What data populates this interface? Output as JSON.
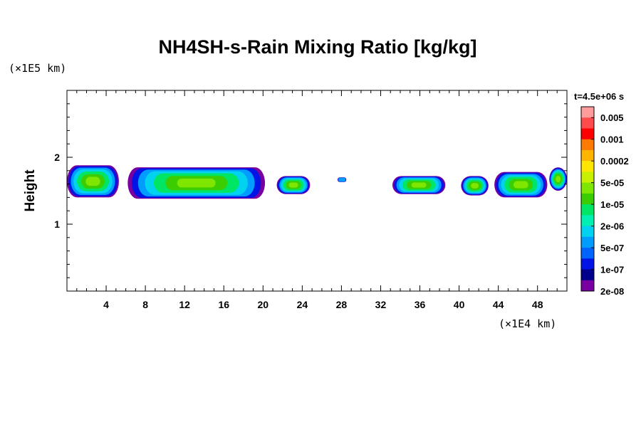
{
  "chart_data": {
    "type": "contour",
    "title": "NH4SH-s-Rain Mixing Ratio [kg/kg]",
    "ylabel": "Height",
    "y_unit": "(×1E5 km)",
    "x_unit": "(×1E4 km)",
    "time_label": "t=4.5e+06 s",
    "xlim": [
      0,
      51
    ],
    "ylim": [
      0,
      3
    ],
    "x_ticks": [
      4,
      8,
      12,
      16,
      20,
      24,
      28,
      32,
      36,
      40,
      44,
      48
    ],
    "y_ticks": [
      1,
      2
    ],
    "colorbar": {
      "labels": [
        "0.005",
        "0.001",
        "0.0002",
        "5e-05",
        "1e-05",
        "2e-06",
        "5e-07",
        "1e-07",
        "2e-08"
      ],
      "colors": [
        "#ff9c9c",
        "#ff4b4b",
        "#ff0000",
        "#ff7a00",
        "#ffb400",
        "#ffe600",
        "#c8f000",
        "#7ee600",
        "#3ccd00",
        "#00e664",
        "#00f0b4",
        "#00d2f0",
        "#009cff",
        "#0064ff",
        "#0014e6",
        "#00008c",
        "#7800a0"
      ]
    },
    "cells": [
      {
        "x0": 0,
        "x1": 5.3,
        "y0": 1.4,
        "y1": 1.88
      },
      {
        "x0": 6.2,
        "x1": 20.2,
        "y0": 1.38,
        "y1": 1.85
      },
      {
        "x0": 21.4,
        "x1": 24.8,
        "y0": 1.45,
        "y1": 1.72
      },
      {
        "x0": 27.6,
        "x1": 28.5,
        "y0": 1.63,
        "y1": 1.7
      },
      {
        "x0": 33.2,
        "x1": 38.6,
        "y0": 1.45,
        "y1": 1.72
      },
      {
        "x0": 40.2,
        "x1": 43.0,
        "y0": 1.43,
        "y1": 1.72
      },
      {
        "x0": 43.6,
        "x1": 49.0,
        "y0": 1.4,
        "y1": 1.78
      },
      {
        "x0": 49.2,
        "x1": 51,
        "y0": 1.5,
        "y1": 1.85
      }
    ]
  }
}
